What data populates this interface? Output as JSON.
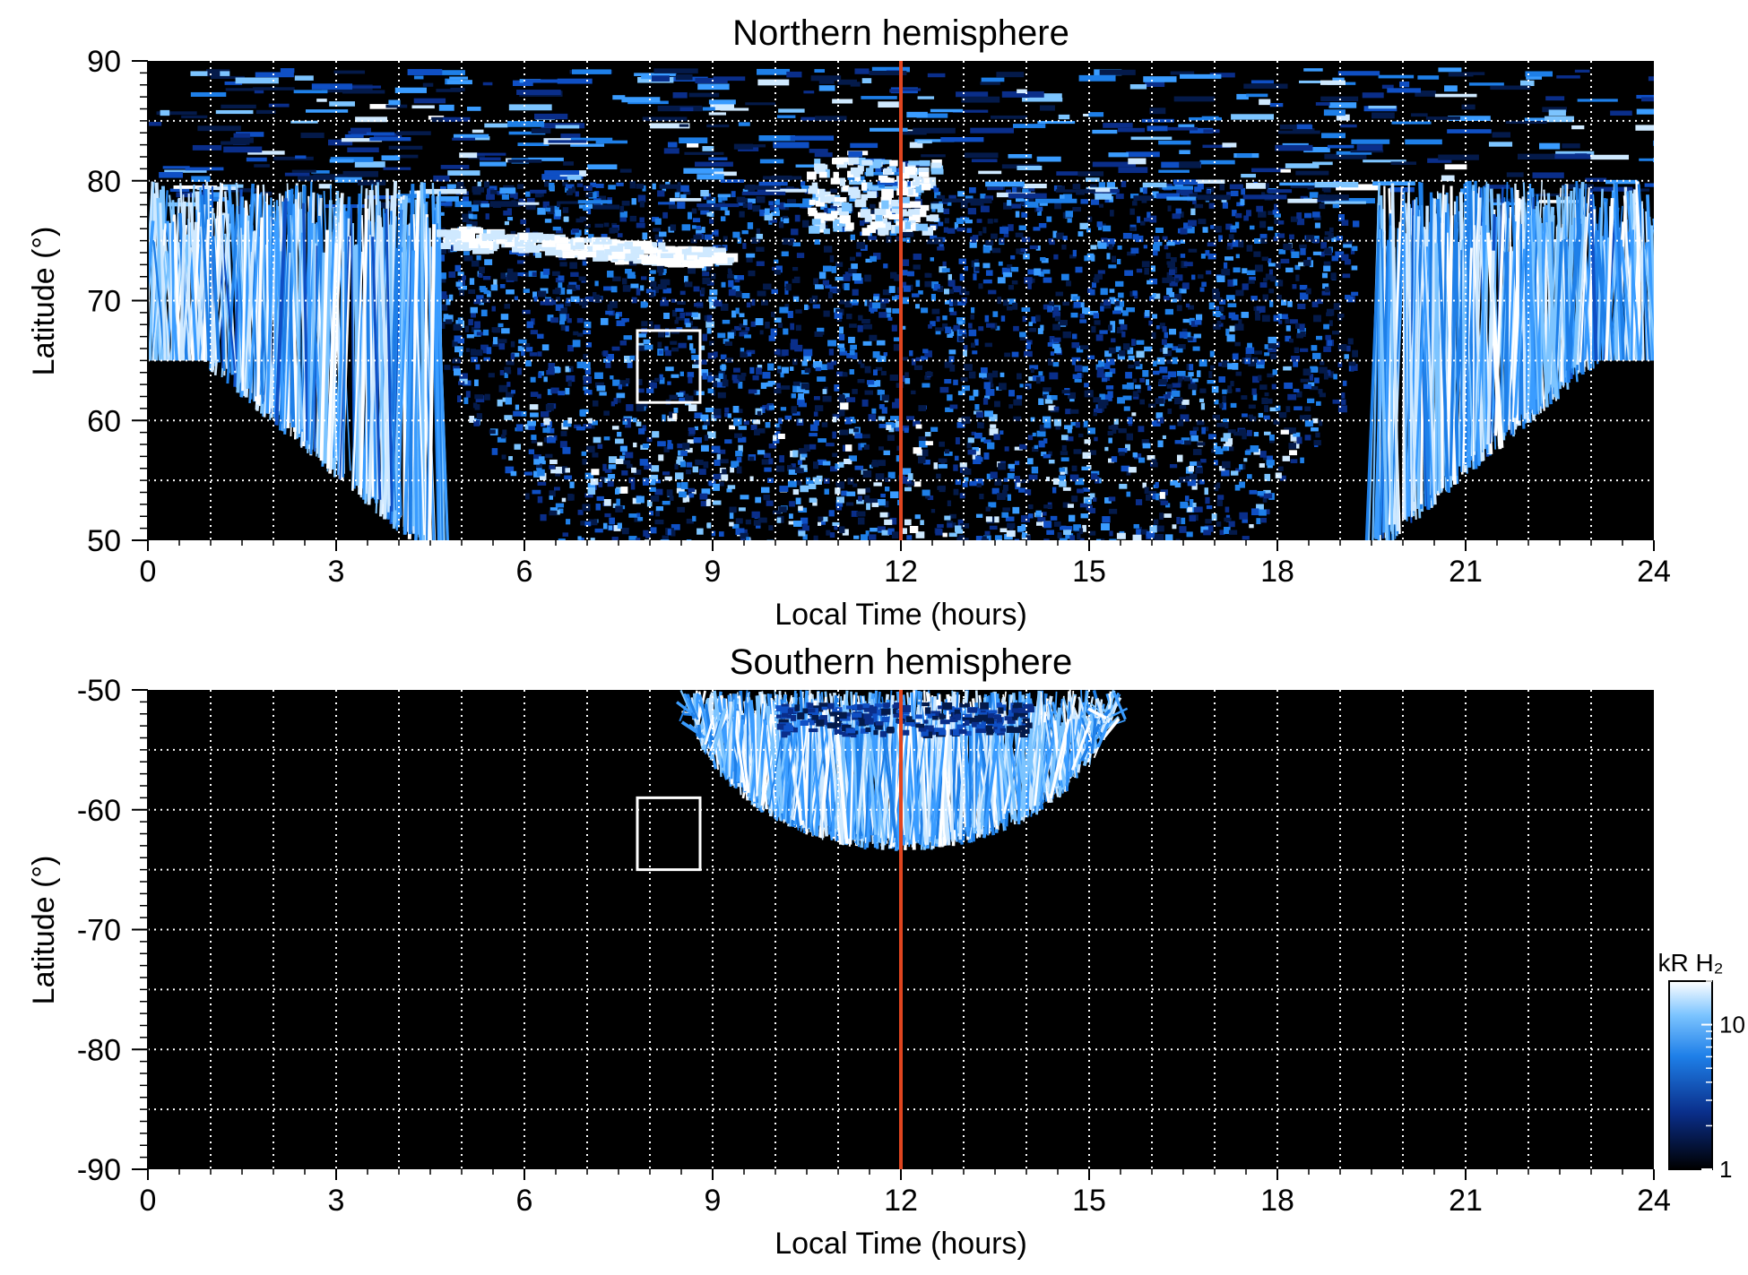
{
  "chart_data": [
    {
      "type": "heatmap",
      "title": "Northern hemisphere",
      "xlabel": "Local Time (hours)",
      "ylabel": "Latitude (°)",
      "xlim": [
        0,
        24
      ],
      "ylim": [
        50,
        90
      ],
      "x_ticks": [
        "0",
        "3",
        "6",
        "9",
        "12",
        "15",
        "18",
        "21",
        "24"
      ],
      "y_ticks": [
        "50",
        "60",
        "70",
        "80",
        "90"
      ],
      "grid": true,
      "reference_line": {
        "x": 12,
        "color": "#e0451f"
      },
      "highlight_box": {
        "x_range": [
          7.8,
          8.8
        ],
        "lat_range": [
          61.5,
          67.5
        ]
      },
      "features": [
        {
          "name": "main oval arc",
          "lt_range": [
            4.5,
            9.2
          ],
          "lat_start": 75.5,
          "lat_end": 73.5
        },
        {
          "name": "noon bright spot",
          "lt_range": [
            10.5,
            12.5
          ],
          "lat_range": [
            76,
            82
          ]
        },
        {
          "name": "dawn flank rays",
          "lt_range": [
            0,
            4.8
          ],
          "lat_range": [
            50,
            80
          ]
        },
        {
          "name": "dusk flank rays",
          "lt_range": [
            19.5,
            24
          ],
          "lat_range": [
            50,
            80
          ]
        },
        {
          "name": "dayside diffuse emission",
          "lt_range": [
            4.8,
            19.0
          ],
          "lat_range": [
            50,
            78
          ]
        }
      ]
    },
    {
      "type": "heatmap",
      "title": "Southern hemisphere",
      "xlabel": "Local Time (hours)",
      "ylabel": "Latitude (°)",
      "xlim": [
        0,
        24
      ],
      "ylim": [
        -90,
        -50
      ],
      "x_ticks": [
        "0",
        "3",
        "6",
        "9",
        "12",
        "15",
        "18",
        "21",
        "24"
      ],
      "y_ticks": [
        "-50",
        "-60",
        "-70",
        "-80",
        "-90"
      ],
      "grid": true,
      "reference_line": {
        "x": 12,
        "color": "#e0451f"
      },
      "highlight_box": {
        "x_range": [
          7.8,
          8.8
        ],
        "lat_range": [
          -65,
          -59
        ]
      },
      "features": [
        {
          "name": "dayside emission fan",
          "lt_range": [
            8.6,
            15.4
          ],
          "lat_range": [
            -63.5,
            -50
          ]
        }
      ]
    }
  ],
  "colorbar": {
    "label": "kR H₂",
    "scale": "log",
    "range": [
      1,
      20
    ],
    "ticks": [
      "1",
      "10"
    ],
    "colors": [
      "#000000",
      "#0a2e8a",
      "#1e7fe8",
      "#7cc4ff",
      "#ffffff"
    ]
  }
}
